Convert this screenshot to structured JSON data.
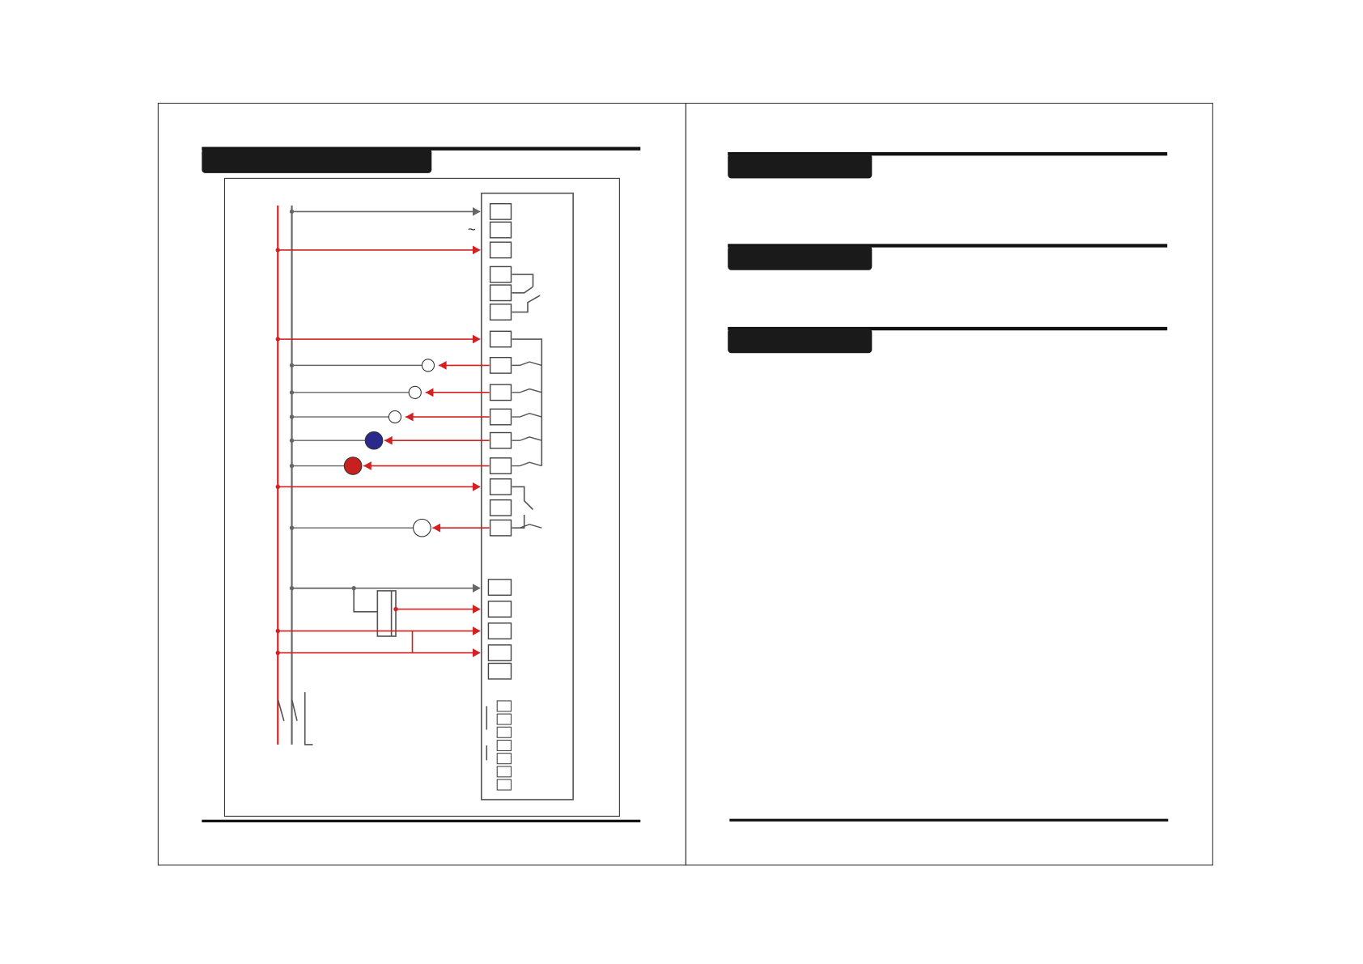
{
  "diagram": {
    "ac_symbol": "~"
  }
}
